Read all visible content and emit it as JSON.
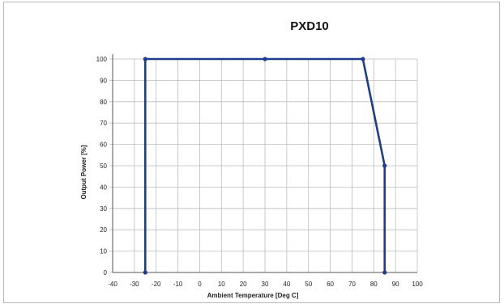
{
  "chart_data": {
    "type": "line",
    "title": "PXD10",
    "xlabel": "Ambient Temperature [Deg C]",
    "ylabel": "Output Power [%]",
    "xlim": [
      -40,
      100
    ],
    "ylim": [
      0,
      100
    ],
    "x_ticks": [
      -40,
      -30,
      -20,
      -10,
      0,
      10,
      20,
      30,
      40,
      50,
      60,
      70,
      80,
      90,
      100
    ],
    "y_ticks": [
      0,
      10,
      20,
      30,
      40,
      50,
      60,
      70,
      80,
      90,
      100
    ],
    "grid": true,
    "colors": {
      "line": "#1f3d8f",
      "grid": "#bdbdbd",
      "axis": "#555555"
    },
    "series": [
      {
        "x": [
          -25,
          -25,
          30,
          75,
          85,
          85
        ],
        "y": [
          0,
          100,
          100,
          100,
          50,
          0
        ]
      }
    ]
  }
}
